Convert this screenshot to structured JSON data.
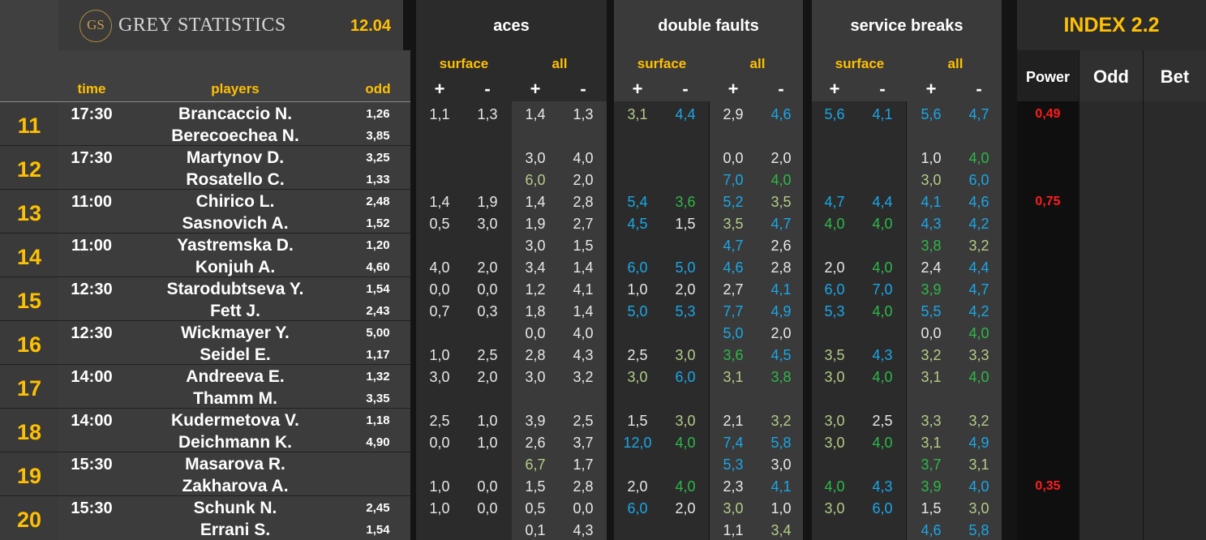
{
  "header": {
    "logo_mark": "GS",
    "brand": "GREY STATISTICS",
    "date": "12.04",
    "sections": [
      "aces",
      "double faults",
      "service breaks"
    ],
    "index": "INDEX 2.2",
    "sub_labels": [
      "surface",
      "all"
    ],
    "plus": "+",
    "minus": "-",
    "cols": {
      "time": "time",
      "players": "players",
      "odd": "odd",
      "power": "Power",
      "odd2": "Odd",
      "bet": "Bet"
    }
  },
  "colors": {
    "white": "#e8e8e8",
    "blue": "#1aa7e6",
    "green": "#2eb84a",
    "olive": "#b4cc88",
    "red": "#ff1c1c",
    "yellow": "#ffc000"
  },
  "matches": [
    {
      "num": "11",
      "time": "17:30",
      "players": [
        {
          "name": "Brancaccio N.",
          "odd": "1,26",
          "stats": [
            [
              "1,1",
              "w"
            ],
            [
              "1,3",
              "w"
            ],
            [
              "1,4",
              "w"
            ],
            [
              "1,3",
              "w"
            ],
            [
              "3,1",
              "o"
            ],
            [
              "4,4",
              "b"
            ],
            [
              "2,9",
              "w"
            ],
            [
              "4,6",
              "b"
            ],
            [
              "5,6",
              "b"
            ],
            [
              "4,1",
              "b"
            ],
            [
              "5,6",
              "b"
            ],
            [
              "4,7",
              "b"
            ]
          ],
          "power": "0,49"
        },
        {
          "name": "Berecoechea N.",
          "odd": "3,85",
          "stats": [
            [
              "",
              ""
            ],
            [
              "",
              ""
            ],
            [
              "",
              ""
            ],
            [
              "",
              ""
            ],
            [
              "",
              ""
            ],
            [
              "",
              ""
            ],
            [
              "",
              ""
            ],
            [
              "",
              ""
            ],
            [
              "",
              ""
            ],
            [
              "",
              ""
            ],
            [
              "",
              ""
            ],
            [
              "",
              ""
            ]
          ]
        }
      ]
    },
    {
      "num": "12",
      "time": "17:30",
      "players": [
        {
          "name": "Martynov D.",
          "odd": "3,25",
          "stats": [
            [
              "",
              ""
            ],
            [
              "",
              ""
            ],
            [
              "3,0",
              "w"
            ],
            [
              "4,0",
              "w"
            ],
            [
              "",
              ""
            ],
            [
              "",
              ""
            ],
            [
              "0,0",
              "w"
            ],
            [
              "2,0",
              "w"
            ],
            [
              "",
              ""
            ],
            [
              "",
              ""
            ],
            [
              "1,0",
              "w"
            ],
            [
              "4,0",
              "g"
            ]
          ]
        },
        {
          "name": "Rosatello C.",
          "odd": "1,33",
          "stats": [
            [
              "",
              ""
            ],
            [
              "",
              ""
            ],
            [
              "6,0",
              "o"
            ],
            [
              "2,0",
              "w"
            ],
            [
              "",
              ""
            ],
            [
              "",
              ""
            ],
            [
              "7,0",
              "b"
            ],
            [
              "4,0",
              "g"
            ],
            [
              "",
              ""
            ],
            [
              "",
              ""
            ],
            [
              "3,0",
              "o"
            ],
            [
              "6,0",
              "b"
            ]
          ]
        }
      ]
    },
    {
      "num": "13",
      "time": "11:00",
      "players": [
        {
          "name": "Chirico L.",
          "odd": "2,48",
          "stats": [
            [
              "1,4",
              "w"
            ],
            [
              "1,9",
              "w"
            ],
            [
              "1,4",
              "w"
            ],
            [
              "2,8",
              "w"
            ],
            [
              "5,4",
              "b"
            ],
            [
              "3,6",
              "g"
            ],
            [
              "5,2",
              "b"
            ],
            [
              "3,5",
              "o"
            ],
            [
              "4,7",
              "b"
            ],
            [
              "4,4",
              "b"
            ],
            [
              "4,1",
              "b"
            ],
            [
              "4,6",
              "b"
            ]
          ],
          "power": "0,75"
        },
        {
          "name": "Sasnovich A.",
          "odd": "1,52",
          "stats": [
            [
              "0,5",
              "w"
            ],
            [
              "3,0",
              "w"
            ],
            [
              "1,9",
              "w"
            ],
            [
              "2,7",
              "w"
            ],
            [
              "4,5",
              "b"
            ],
            [
              "1,5",
              "w"
            ],
            [
              "3,5",
              "o"
            ],
            [
              "4,7",
              "b"
            ],
            [
              "4,0",
              "g"
            ],
            [
              "4,0",
              "g"
            ],
            [
              "4,3",
              "b"
            ],
            [
              "4,2",
              "b"
            ]
          ]
        }
      ]
    },
    {
      "num": "14",
      "time": "11:00",
      "players": [
        {
          "name": "Yastremska D.",
          "odd": "1,20",
          "stats": [
            [
              "",
              ""
            ],
            [
              "",
              ""
            ],
            [
              "3,0",
              "w"
            ],
            [
              "1,5",
              "w"
            ],
            [
              "",
              ""
            ],
            [
              "",
              ""
            ],
            [
              "4,7",
              "b"
            ],
            [
              "2,6",
              "w"
            ],
            [
              "",
              ""
            ],
            [
              "",
              ""
            ],
            [
              "3,8",
              "g"
            ],
            [
              "3,2",
              "o"
            ]
          ]
        },
        {
          "name": "Konjuh A.",
          "odd": "4,60",
          "stats": [
            [
              "4,0",
              "w"
            ],
            [
              "2,0",
              "w"
            ],
            [
              "3,4",
              "w"
            ],
            [
              "1,4",
              "w"
            ],
            [
              "6,0",
              "b"
            ],
            [
              "5,0",
              "b"
            ],
            [
              "4,6",
              "b"
            ],
            [
              "2,8",
              "w"
            ],
            [
              "2,0",
              "w"
            ],
            [
              "4,0",
              "g"
            ],
            [
              "2,4",
              "w"
            ],
            [
              "4,4",
              "b"
            ]
          ]
        }
      ]
    },
    {
      "num": "15",
      "time": "12:30",
      "players": [
        {
          "name": "Starodubtseva Y.",
          "odd": "1,54",
          "stats": [
            [
              "0,0",
              "w"
            ],
            [
              "0,0",
              "w"
            ],
            [
              "1,2",
              "w"
            ],
            [
              "4,1",
              "w"
            ],
            [
              "1,0",
              "w"
            ],
            [
              "2,0",
              "w"
            ],
            [
              "2,7",
              "w"
            ],
            [
              "4,1",
              "b"
            ],
            [
              "6,0",
              "b"
            ],
            [
              "7,0",
              "b"
            ],
            [
              "3,9",
              "g"
            ],
            [
              "4,7",
              "b"
            ]
          ]
        },
        {
          "name": "Fett J.",
          "odd": "2,43",
          "stats": [
            [
              "0,7",
              "w"
            ],
            [
              "0,3",
              "w"
            ],
            [
              "1,8",
              "w"
            ],
            [
              "1,4",
              "w"
            ],
            [
              "5,0",
              "b"
            ],
            [
              "5,3",
              "b"
            ],
            [
              "7,7",
              "b"
            ],
            [
              "4,9",
              "b"
            ],
            [
              "5,3",
              "b"
            ],
            [
              "4,0",
              "g"
            ],
            [
              "5,5",
              "b"
            ],
            [
              "4,2",
              "b"
            ]
          ]
        }
      ]
    },
    {
      "num": "16",
      "time": "12:30",
      "players": [
        {
          "name": "Wickmayer Y.",
          "odd": "5,00",
          "stats": [
            [
              "",
              ""
            ],
            [
              "",
              ""
            ],
            [
              "0,0",
              "w"
            ],
            [
              "4,0",
              "w"
            ],
            [
              "",
              ""
            ],
            [
              "",
              ""
            ],
            [
              "5,0",
              "b"
            ],
            [
              "2,0",
              "w"
            ],
            [
              "",
              ""
            ],
            [
              "",
              ""
            ],
            [
              "0,0",
              "w"
            ],
            [
              "4,0",
              "g"
            ]
          ]
        },
        {
          "name": "Seidel E.",
          "odd": "1,17",
          "stats": [
            [
              "1,0",
              "w"
            ],
            [
              "2,5",
              "w"
            ],
            [
              "2,8",
              "w"
            ],
            [
              "4,3",
              "w"
            ],
            [
              "2,5",
              "w"
            ],
            [
              "3,0",
              "o"
            ],
            [
              "3,6",
              "g"
            ],
            [
              "4,5",
              "b"
            ],
            [
              "3,5",
              "o"
            ],
            [
              "4,3",
              "b"
            ],
            [
              "3,2",
              "o"
            ],
            [
              "3,3",
              "o"
            ]
          ]
        }
      ]
    },
    {
      "num": "17",
      "time": "14:00",
      "players": [
        {
          "name": "Andreeva E.",
          "odd": "1,32",
          "stats": [
            [
              "3,0",
              "w"
            ],
            [
              "2,0",
              "w"
            ],
            [
              "3,0",
              "w"
            ],
            [
              "3,2",
              "w"
            ],
            [
              "3,0",
              "o"
            ],
            [
              "6,0",
              "b"
            ],
            [
              "3,1",
              "o"
            ],
            [
              "3,8",
              "g"
            ],
            [
              "3,0",
              "o"
            ],
            [
              "4,0",
              "g"
            ],
            [
              "3,1",
              "o"
            ],
            [
              "4,0",
              "g"
            ]
          ]
        },
        {
          "name": "Thamm M.",
          "odd": "3,35",
          "stats": [
            [
              "",
              ""
            ],
            [
              "",
              ""
            ],
            [
              "",
              ""
            ],
            [
              "",
              ""
            ],
            [
              "",
              ""
            ],
            [
              "",
              ""
            ],
            [
              "",
              ""
            ],
            [
              "",
              ""
            ],
            [
              "",
              ""
            ],
            [
              "",
              ""
            ],
            [
              "",
              ""
            ],
            [
              "",
              ""
            ]
          ]
        }
      ]
    },
    {
      "num": "18",
      "time": "14:00",
      "players": [
        {
          "name": "Kudermetova V.",
          "odd": "1,18",
          "stats": [
            [
              "2,5",
              "w"
            ],
            [
              "1,0",
              "w"
            ],
            [
              "3,9",
              "w"
            ],
            [
              "2,5",
              "w"
            ],
            [
              "1,5",
              "w"
            ],
            [
              "3,0",
              "o"
            ],
            [
              "2,1",
              "w"
            ],
            [
              "3,2",
              "o"
            ],
            [
              "3,0",
              "o"
            ],
            [
              "2,5",
              "w"
            ],
            [
              "3,3",
              "o"
            ],
            [
              "3,2",
              "o"
            ]
          ]
        },
        {
          "name": "Deichmann K.",
          "odd": "4,90",
          "stats": [
            [
              "0,0",
              "w"
            ],
            [
              "1,0",
              "w"
            ],
            [
              "2,6",
              "w"
            ],
            [
              "3,7",
              "w"
            ],
            [
              "12,0",
              "b"
            ],
            [
              "4,0",
              "g"
            ],
            [
              "7,4",
              "b"
            ],
            [
              "5,8",
              "b"
            ],
            [
              "3,0",
              "o"
            ],
            [
              "4,0",
              "g"
            ],
            [
              "3,1",
              "o"
            ],
            [
              "4,9",
              "b"
            ]
          ]
        }
      ]
    },
    {
      "num": "19",
      "time": "15:30",
      "players": [
        {
          "name": "Masarova R.",
          "odd": "",
          "stats": [
            [
              "",
              ""
            ],
            [
              "",
              ""
            ],
            [
              "6,7",
              "o"
            ],
            [
              "1,7",
              "w"
            ],
            [
              "",
              ""
            ],
            [
              "",
              ""
            ],
            [
              "5,3",
              "b"
            ],
            [
              "3,0",
              "w"
            ],
            [
              "",
              ""
            ],
            [
              "",
              ""
            ],
            [
              "3,7",
              "g"
            ],
            [
              "3,1",
              "o"
            ]
          ]
        },
        {
          "name": "Zakharova A.",
          "odd": "",
          "stats": [
            [
              "1,0",
              "w"
            ],
            [
              "0,0",
              "w"
            ],
            [
              "1,5",
              "w"
            ],
            [
              "2,8",
              "w"
            ],
            [
              "2,0",
              "w"
            ],
            [
              "4,0",
              "g"
            ],
            [
              "2,3",
              "w"
            ],
            [
              "4,1",
              "b"
            ],
            [
              "4,0",
              "g"
            ],
            [
              "4,3",
              "b"
            ],
            [
              "3,9",
              "g"
            ],
            [
              "4,0",
              "b"
            ]
          ],
          "power": "0,35"
        }
      ]
    },
    {
      "num": "20",
      "time": "15:30",
      "players": [
        {
          "name": "Schunk N.",
          "odd": "2,45",
          "stats": [
            [
              "1,0",
              "w"
            ],
            [
              "0,0",
              "w"
            ],
            [
              "0,5",
              "w"
            ],
            [
              "0,0",
              "w"
            ],
            [
              "6,0",
              "b"
            ],
            [
              "2,0",
              "w"
            ],
            [
              "3,0",
              "o"
            ],
            [
              "1,0",
              "w"
            ],
            [
              "3,0",
              "o"
            ],
            [
              "6,0",
              "b"
            ],
            [
              "1,5",
              "w"
            ],
            [
              "3,0",
              "o"
            ]
          ]
        },
        {
          "name": "Errani S.",
          "odd": "1,54",
          "stats": [
            [
              "",
              ""
            ],
            [
              "",
              ""
            ],
            [
              "0,1",
              "w"
            ],
            [
              "4,3",
              "w"
            ],
            [
              "",
              ""
            ],
            [
              "",
              ""
            ],
            [
              "1,1",
              "w"
            ],
            [
              "3,4",
              "o"
            ],
            [
              "",
              ""
            ],
            [
              "",
              ""
            ],
            [
              "4,6",
              "b"
            ],
            [
              "5,8",
              "b"
            ]
          ]
        }
      ]
    }
  ]
}
